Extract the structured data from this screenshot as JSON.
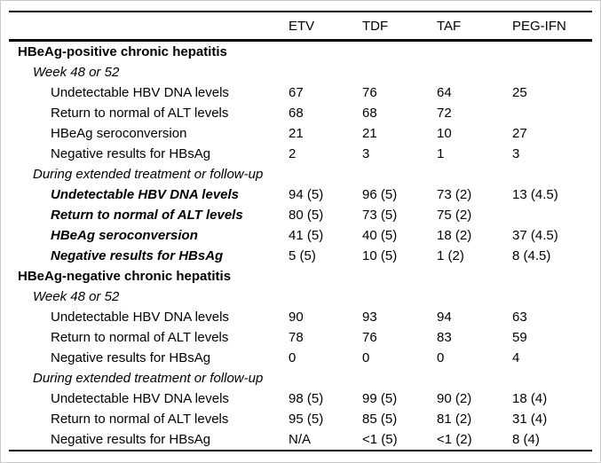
{
  "colors": {
    "text": "#000000",
    "background": "#ffffff",
    "rule": "#000000",
    "frame": "#c9c9c9"
  },
  "table": {
    "columns": [
      "ETV",
      "TDF",
      "TAF",
      "PEG-IFN"
    ],
    "rows": [
      {
        "label": "HBeAg-positive chronic hepatitis",
        "style": "section",
        "values": [
          "",
          "",
          "",
          ""
        ]
      },
      {
        "label": "Week 48 or 52",
        "style": "subsection",
        "values": [
          "",
          "",
          "",
          ""
        ]
      },
      {
        "label": "Undetectable HBV DNA levels",
        "style": "data",
        "values": [
          "67",
          "76",
          "64",
          "25"
        ]
      },
      {
        "label": "Return to normal of ALT levels",
        "style": "data",
        "values": [
          "68",
          "68",
          "72",
          ""
        ]
      },
      {
        "label": "HBeAg seroconversion",
        "style": "data",
        "values": [
          "21",
          "21",
          "10",
          "27"
        ]
      },
      {
        "label": "Negative results for HBsAg",
        "style": "data",
        "values": [
          "2",
          "3",
          "1",
          "3"
        ]
      },
      {
        "label": "During extended treatment or follow-up",
        "style": "subsection",
        "values": [
          "",
          "",
          "",
          ""
        ]
      },
      {
        "label": "Undetectable HBV DNA levels",
        "style": "databold",
        "values": [
          "94 (5)",
          "96 (5)",
          "73 (2)",
          "13 (4.5)"
        ]
      },
      {
        "label": "Return to normal of ALT levels",
        "style": "databold",
        "values": [
          "80 (5)",
          "73 (5)",
          "75 (2)",
          ""
        ]
      },
      {
        "label": "HBeAg seroconversion",
        "style": "databold",
        "values": [
          "41 (5)",
          "40 (5)",
          "18 (2)",
          "37 (4.5)"
        ]
      },
      {
        "label": "Negative results for HBsAg",
        "style": "databold",
        "values": [
          "5 (5)",
          "10 (5)",
          "1 (2)",
          "8 (4.5)"
        ]
      },
      {
        "label": "HBeAg-negative chronic hepatitis",
        "style": "section",
        "values": [
          "",
          "",
          "",
          ""
        ]
      },
      {
        "label": "Week 48 or 52",
        "style": "subsection",
        "values": [
          "",
          "",
          "",
          ""
        ]
      },
      {
        "label": "Undetectable HBV DNA levels",
        "style": "data",
        "values": [
          "90",
          "93",
          "94",
          "63"
        ]
      },
      {
        "label": "Return to normal of ALT levels",
        "style": "data",
        "values": [
          "78",
          "76",
          "83",
          "59"
        ]
      },
      {
        "label": "Negative results for HBsAg",
        "style": "data",
        "values": [
          "0",
          "0",
          "0",
          "4"
        ]
      },
      {
        "label": "During extended treatment or follow-up",
        "style": "subsection",
        "values": [
          "",
          "",
          "",
          ""
        ]
      },
      {
        "label": "Undetectable HBV DNA levels",
        "style": "data",
        "values": [
          "98 (5)",
          "99 (5)",
          "90 (2)",
          "18 (4)"
        ]
      },
      {
        "label": "Return to normal of ALT levels",
        "style": "data",
        "values": [
          "95 (5)",
          "85 (5)",
          "81 (2)",
          "31 (4)"
        ]
      },
      {
        "label": "Negative results for HBsAg",
        "style": "data",
        "values": [
          "N/A",
          "<1 (5)",
          "<1 (2)",
          "8 (4)"
        ]
      }
    ]
  }
}
